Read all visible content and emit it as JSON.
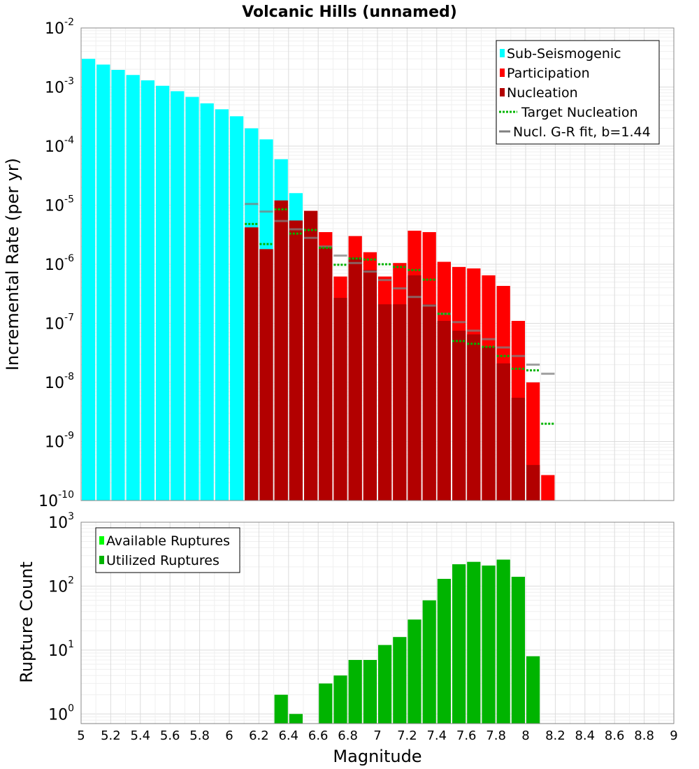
{
  "chart_data": [
    {
      "id": "rate",
      "type": "bar",
      "title": "Volcanic Hills (unnamed)",
      "ylabel": "Incremental Rate (per yr)",
      "xlabel": "",
      "yscale": "log",
      "ylim_exp": [
        -10,
        -2
      ],
      "xlim": [
        5,
        9
      ],
      "bin_width": 0.1,
      "y_tick_labels": [
        {
          "base": "10",
          "exp": "-2"
        },
        {
          "base": "10",
          "exp": "-3"
        },
        {
          "base": "10",
          "exp": "-4"
        },
        {
          "base": "10",
          "exp": "-5"
        },
        {
          "base": "10",
          "exp": "-6"
        },
        {
          "base": "10",
          "exp": "-7"
        },
        {
          "base": "10",
          "exp": "-8"
        },
        {
          "base": "10",
          "exp": "-9"
        },
        {
          "base": "10",
          "exp": "-10"
        }
      ],
      "legend": [
        {
          "label": "Sub-Seismogenic",
          "color": "#00ffff",
          "style": "box"
        },
        {
          "label": "Participation",
          "color": "#ff0000",
          "style": "box"
        },
        {
          "label": "Nucleation",
          "color": "#b20000",
          "style": "box"
        },
        {
          "label": "Target Nucleation",
          "color": "#00b400",
          "style": "dotted"
        },
        {
          "label": "Nucl. G-R fit, b=1.44",
          "color": "#808080",
          "style": "line"
        }
      ],
      "series": [
        {
          "name": "Sub-Seismogenic",
          "color": "#00ffff",
          "x": [
            5.0,
            5.1,
            5.2,
            5.3,
            5.4,
            5.5,
            5.6,
            5.7,
            5.8,
            5.9,
            6.0,
            6.1,
            6.2,
            6.3,
            6.4
          ],
          "values": [
            0.003,
            0.0024,
            0.00195,
            0.0016,
            0.0013,
            0.00105,
            0.00085,
            0.00068,
            0.00053,
            0.00042,
            0.00032,
            0.0002,
            0.00013,
            6e-05,
            1.6e-05
          ]
        },
        {
          "name": "Participation",
          "color": "#ff0000",
          "x": [
            6.1,
            6.2,
            6.3,
            6.4,
            6.5,
            6.6,
            6.7,
            6.8,
            6.9,
            7.0,
            7.1,
            7.2,
            7.3,
            7.4,
            7.5,
            7.6,
            7.7,
            7.8,
            7.9,
            8.0,
            8.1
          ],
          "values": [
            4.2e-06,
            1.8e-06,
            1.2e-05,
            5.5e-06,
            8e-06,
            3.5e-06,
            6.2e-07,
            3e-06,
            1.6e-06,
            6.2e-07,
            1.05e-06,
            3.7e-06,
            3.5e-06,
            1.1e-06,
            9e-07,
            8.5e-07,
            6.5e-07,
            4.3e-07,
            1.1e-07,
            1e-08,
            2.7e-10
          ]
        },
        {
          "name": "Nucleation",
          "color": "#b20000",
          "x": [
            6.1,
            6.2,
            6.3,
            6.4,
            6.5,
            6.6,
            6.7,
            6.8,
            6.9,
            7.0,
            7.1,
            7.2,
            7.3,
            7.4,
            7.5,
            7.6,
            7.7,
            7.8,
            7.9,
            8.0
          ],
          "values": [
            4.2e-06,
            1.8e-06,
            1.2e-05,
            5.5e-06,
            8e-06,
            2e-06,
            2.7e-07,
            1.3e-06,
            8e-07,
            2.1e-07,
            2.1e-07,
            6.5e-07,
            2.1e-07,
            1.1e-07,
            7.5e-08,
            6.5e-08,
            4e-08,
            2.1e-08,
            5.5e-09,
            4e-10
          ]
        },
        {
          "name": "Target Nucleation",
          "color": "#00b400",
          "x": [
            6.1,
            6.2,
            6.3,
            6.4,
            6.5,
            6.6,
            6.7,
            6.8,
            6.9,
            7.0,
            7.1,
            7.2,
            7.3,
            7.4,
            7.5,
            7.6,
            7.7,
            7.8,
            7.9,
            8.0,
            8.1
          ],
          "values": [
            4.8e-06,
            2.2e-06,
            8.5e-06,
            3.3e-06,
            3.8e-06,
            1.9e-06,
            9.8e-07,
            1.25e-06,
            1.2e-06,
            1e-06,
            9e-07,
            8e-07,
            5.5e-07,
            1.45e-07,
            5e-08,
            4.5e-08,
            4e-08,
            2.8e-08,
            1.7e-08,
            1.6e-08,
            2e-09
          ]
        },
        {
          "name": "Nucl. G-R fit, b=1.44",
          "color": "#808080",
          "x": [
            6.1,
            6.2,
            6.3,
            6.4,
            6.5,
            6.6,
            6.7,
            6.8,
            6.9,
            7.0,
            7.1,
            7.2,
            7.3,
            7.4,
            7.5,
            7.6,
            7.7,
            7.8,
            7.9,
            8.0,
            8.1
          ],
          "values": [
            1.05e-05,
            7.8e-06,
            5.4e-06,
            3.9e-06,
            2.8e-06,
            2e-06,
            1.4e-06,
            1.05e-06,
            7.5e-07,
            5.4e-07,
            3.9e-07,
            2.8e-07,
            2e-07,
            1.45e-07,
            1.05e-07,
            7.5e-08,
            5.4e-08,
            3.9e-08,
            2.8e-08,
            2e-08,
            1.4e-08
          ]
        }
      ]
    },
    {
      "id": "count",
      "type": "bar",
      "title": "",
      "ylabel": "Rupture Count",
      "xlabel": "Magnitude",
      "yscale": "log",
      "ylim_exp": [
        -0.15,
        3
      ],
      "xlim": [
        5,
        9
      ],
      "bin_width": 0.1,
      "y_tick_labels": [
        {
          "base": "10",
          "exp": "3",
          "value": 3
        },
        {
          "base": "10",
          "exp": "2",
          "value": 2
        },
        {
          "base": "10",
          "exp": "1",
          "value": 1
        },
        {
          "base": "10",
          "exp": "0",
          "value": 0
        }
      ],
      "x_tick_labels": [
        "5",
        "5.2",
        "5.4",
        "5.6",
        "5.8",
        "6",
        "6.2",
        "6.4",
        "6.6",
        "6.8",
        "7",
        "7.2",
        "7.4",
        "7.6",
        "7.8",
        "8",
        "8.2",
        "8.4",
        "8.6",
        "8.8",
        "9"
      ],
      "legend": [
        {
          "label": "Available Ruptures",
          "color": "#00ff00",
          "style": "box"
        },
        {
          "label": "Utilized Ruptures",
          "color": "#00b400",
          "style": "box"
        }
      ],
      "series": [
        {
          "name": "Utilized Ruptures",
          "color": "#00b400",
          "x": [
            6.3,
            6.4,
            6.6,
            6.7,
            6.8,
            6.9,
            7.0,
            7.1,
            7.2,
            7.3,
            7.4,
            7.5,
            7.6,
            7.7,
            7.8,
            7.9,
            8.0
          ],
          "values": [
            2,
            1,
            3,
            4,
            7,
            7,
            12,
            16,
            30,
            60,
            130,
            220,
            240,
            210,
            260,
            140,
            8
          ]
        }
      ]
    }
  ]
}
